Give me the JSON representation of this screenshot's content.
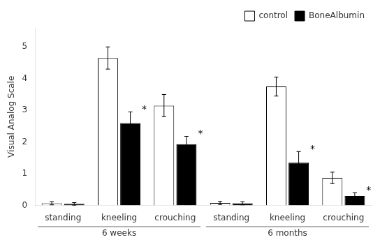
{
  "chart_data": {
    "type": "bar",
    "categories": [
      "standing",
      "kneeling",
      "crouching",
      "standing",
      "kneeling",
      "crouching"
    ],
    "period_labels": [
      "6 weeks",
      "6 months"
    ],
    "series": [
      {
        "name": "control",
        "color": "white",
        "values": [
          0.07,
          4.65,
          3.15,
          0.08,
          3.75,
          0.87
        ],
        "errors": [
          0.05,
          0.35,
          0.35,
          0.05,
          0.3,
          0.18
        ]
      },
      {
        "name": "BoneAlbumin",
        "color": "black",
        "values": [
          0.05,
          2.6,
          1.93,
          0.07,
          1.35,
          0.3
        ],
        "errors": [
          0.04,
          0.35,
          0.25,
          0.05,
          0.35,
          0.1
        ]
      }
    ],
    "annotations": [
      {
        "text": "*",
        "series": "BoneAlbumin",
        "index": 1
      },
      {
        "text": "*",
        "series": "BoneAlbumin",
        "index": 2
      },
      {
        "text": "*",
        "series": "BoneAlbumin",
        "index": 4
      },
      {
        "text": "*",
        "series": "BoneAlbumin",
        "index": 5
      }
    ],
    "ylabel": "Visual Analog Scale",
    "ylim": [
      0,
      5.6
    ],
    "yticks": [
      0,
      1,
      2,
      3,
      4,
      5
    ],
    "grid": false,
    "legend": "upper right"
  }
}
